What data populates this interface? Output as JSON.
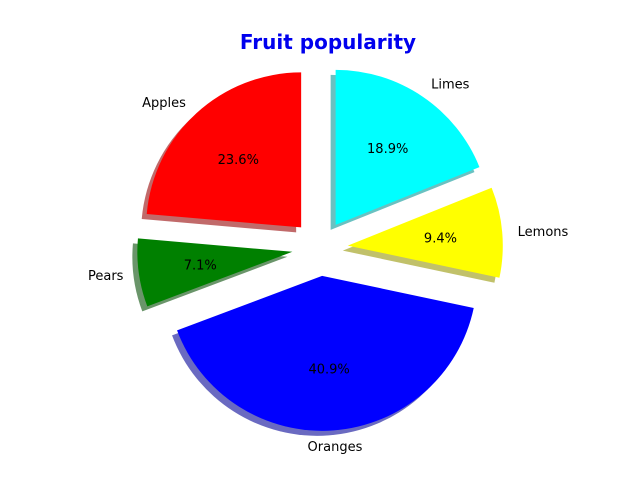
{
  "chart_data": {
    "type": "pie",
    "title": "Fruit popularity",
    "title_color": "#0000ee",
    "slices": [
      {
        "label": "Apples",
        "value": 23.6,
        "pct_text": "23.6%",
        "color": "#ff0000",
        "exploded": true
      },
      {
        "label": "Pears",
        "value": 7.1,
        "pct_text": "7.1%",
        "color": "#008000",
        "exploded": true
      },
      {
        "label": "Oranges",
        "value": 40.9,
        "pct_text": "40.9%",
        "color": "#0000ff",
        "exploded": true
      },
      {
        "label": "Lemons",
        "value": 9.4,
        "pct_text": "9.4%",
        "color": "#ffff00",
        "exploded": true
      },
      {
        "label": "Limes",
        "value": 18.9,
        "pct_text": "18.9%",
        "color": "#00ffff",
        "exploded": true
      }
    ],
    "start_angle_deg": 90,
    "shadow": true
  }
}
